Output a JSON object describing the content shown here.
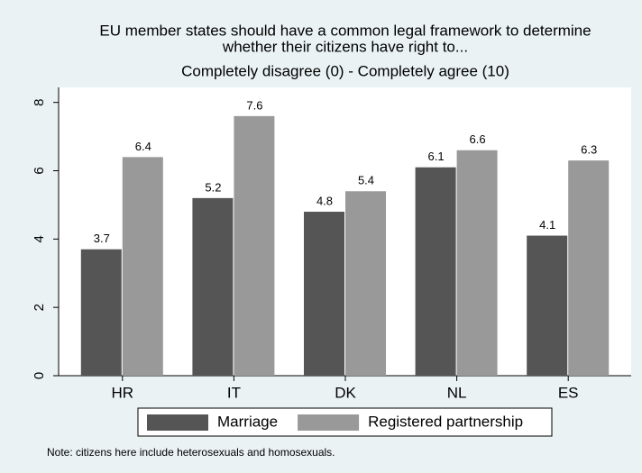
{
  "chart_data": {
    "type": "bar",
    "title": [
      "EU member states should have a common legal framework to determine",
      "whether their citizens have right to..."
    ],
    "subtitle": "Completely disagree (0) - Completely agree (10)",
    "note": "Note: citizens here include heterosexuals and homosexuals.",
    "categories": [
      "HR",
      "IT",
      "DK",
      "NL",
      "ES"
    ],
    "series": [
      {
        "name": "Marriage",
        "color": "#555555",
        "values": [
          3.7,
          5.2,
          4.8,
          6.1,
          4.1
        ]
      },
      {
        "name": "Registered partnership",
        "color": "#999999",
        "values": [
          6.4,
          7.6,
          5.4,
          6.6,
          6.3
        ]
      }
    ],
    "ylim": [
      0,
      8.44
    ],
    "yticks": [
      0,
      2,
      4,
      6,
      8
    ],
    "grid": false,
    "legend": "bottom"
  }
}
